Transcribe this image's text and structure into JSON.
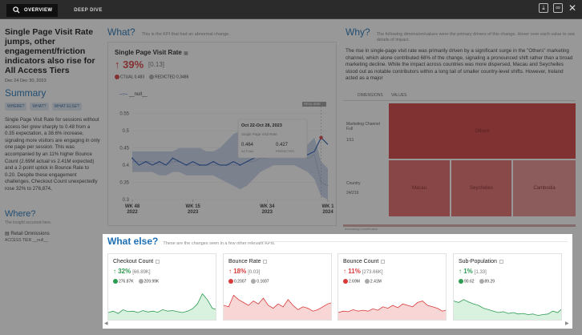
{
  "tabs": [
    {
      "label": "OVERVIEW"
    },
    {
      "label": "DEEP DIVE"
    }
  ],
  "left": {
    "headline": "Single Page Visit Rate jumps, other engagement/friction indicators also rise for All Access Tiers",
    "date": "Dec 24 Dec 30, 2023",
    "summary_title": "Summary",
    "pills": [
      "WHERE?",
      "WHAT?",
      "WHAT ELSE?"
    ],
    "summary_text": "Single Page Visit Rate for sessions without access tier grew sharply to 0.48 from a 0.35 expectation, a 38.6% increase, signaling more visitors are engaging in only one page per session. This was accompanied by an 11% higher Bounce Count (2.69M actual vs 2.41M expected) and a 2-point uptick in Bounce Rate to 0.20. Despite these engagement challenges, Checkout Count unexpectedly rose 32% to 276,874,",
    "where_title": "Where?",
    "where_sub": "The Insight occurred here.",
    "where_item": "Retail Omnissions",
    "where_tier": "ACCESS TIER __null__"
  },
  "what": {
    "title": "What?",
    "subtitle": "This is the KPI that had an abnormal change.",
    "kpi_name": "Single Page Visit Rate",
    "delta": "39%",
    "delta_abs": "[0.13]",
    "actual": "CTUAL 0.483",
    "predicted": "REDICTED 0.3486",
    "legend": "__null__",
    "tooltip_date": "Oct 22-Oct 28, 2023",
    "tooltip_kpi": "Single Page Visit Rate",
    "tooltip_actual": "0.464",
    "tooltip_actual_label": "ACTUAL",
    "tooltip_pred": "0.427",
    "tooltip_pred_label": "PREDICTED",
    "story_date": "Story date"
  },
  "chart_data": {
    "type": "line",
    "title": "Single Page Visit Rate",
    "x": [
      "WK 48 2022",
      "",
      "",
      "",
      "",
      "",
      "",
      "",
      "",
      "WK 15 2023",
      "",
      "",
      "",
      "",
      "",
      "",
      "",
      "",
      "",
      "",
      "WK 34 2023",
      "",
      "",
      "",
      "",
      "",
      "",
      "",
      "",
      "WK 1 2024"
    ],
    "series": [
      {
        "name": "actual",
        "values": [
          0.42,
          0.4,
          0.41,
          0.4,
          0.41,
          0.4,
          0.42,
          0.41,
          0.4,
          0.41,
          0.4,
          0.4,
          0.41,
          0.4,
          0.4,
          0.41,
          0.4,
          0.41,
          0.42,
          0.43,
          0.44,
          0.43,
          0.46,
          0.44,
          0.45,
          0.44,
          0.43,
          0.44,
          0.48,
          0.46
        ]
      },
      {
        "name": "predicted",
        "values": [
          0.41,
          0.41,
          0.41,
          0.41,
          0.4,
          0.4,
          0.41,
          0.41,
          0.4,
          0.4,
          0.4,
          0.4,
          0.4,
          0.4,
          0.4,
          0.4,
          0.4,
          0.41,
          0.41,
          0.42,
          0.42,
          0.43,
          0.43,
          0.43,
          0.43,
          0.43,
          0.42,
          0.43,
          0.35,
          0.34
        ]
      }
    ],
    "band_low": [
      0.38,
      0.38,
      0.38,
      0.38,
      0.37,
      0.37,
      0.38,
      0.38,
      0.37,
      0.37,
      0.37,
      0.37,
      0.37,
      0.36,
      0.35,
      0.34,
      0.33,
      0.34,
      0.36,
      0.38,
      0.39,
      0.4,
      0.4,
      0.4,
      0.4,
      0.39,
      0.38,
      0.36,
      0.31,
      0.3
    ],
    "band_high": [
      0.44,
      0.44,
      0.44,
      0.44,
      0.44,
      0.44,
      0.44,
      0.45,
      0.45,
      0.45,
      0.45,
      0.44,
      0.44,
      0.45,
      0.47,
      0.49,
      0.5,
      0.5,
      0.48,
      0.46,
      0.46,
      0.46,
      0.46,
      0.46,
      0.46,
      0.46,
      0.46,
      0.48,
      0.41,
      0.39
    ],
    "yticks": [
      "0.3",
      "0.35",
      "0.4",
      "0.45",
      "0.5",
      "0.55"
    ],
    "ylim": [
      0.3,
      0.57
    ],
    "xtick_labels": [
      [
        "WK 48",
        "2022"
      ],
      [
        "WK 15",
        "2023"
      ],
      [
        "WK 34",
        "2023"
      ],
      [
        "WK 1",
        "2024"
      ]
    ],
    "grid": true
  },
  "why": {
    "title": "Why?",
    "subtitle": "The following dimension/values were the primary drivers of this change. Hover over each value to see details of impact.",
    "text": "The rise in single-page visit rate was primarily driven by a significant surge in the \"Others\" marketing channel, which alone contributed 68% of the change, signaling a pronounced shift rather than a broad marketing decline. While the impact across countries was more dispersed, Macau and Seychelles stood out as notable contributors within a long tail of smaller country-level shifts. However, Ireland acted as a major",
    "tab_dimensions": "DIMENSIONS",
    "tab_values": "VALUES",
    "row1_label": "Marketing Channel Full",
    "row1_count": "1/11",
    "row2_label": "Country",
    "row2_count": "24/219",
    "blocks": [
      "Others",
      "Macau",
      "Seychelles",
      "Cambodia"
    ],
    "footer": "Increasing Contribution"
  },
  "what_else": {
    "title": "What else?",
    "subtitle": "These are the changes seen in a few other relevant KPIs.",
    "cards": [
      {
        "name": "Checkout Count",
        "dir": "up",
        "pct": "32%",
        "abs": "[66.89K]",
        "actual": "276.87K",
        "pred": "209.99K",
        "color": "#2e9b52",
        "fill": "#d8f2df",
        "spark": [
          0.25,
          0.3,
          0.22,
          0.35,
          0.28,
          0.3,
          0.25,
          0.32,
          0.27,
          0.3,
          0.26,
          0.35,
          0.3,
          0.32,
          0.28,
          0.25,
          0.3,
          0.38,
          0.55,
          0.9,
          0.7,
          0.4,
          0.35
        ]
      },
      {
        "name": "Bounce Rate",
        "dir": "down",
        "pct": "18%",
        "abs": "[0.03]",
        "actual": "0.2007",
        "pred": "0.1697",
        "color": "#d93a3a",
        "fill": "#f8d6d6",
        "spark": [
          0.5,
          0.45,
          0.85,
          0.7,
          0.6,
          0.5,
          0.65,
          0.55,
          0.75,
          0.5,
          0.4,
          0.55,
          0.45,
          0.7,
          0.5,
          0.35,
          0.45,
          0.4,
          0.3,
          0.35,
          0.45,
          0.55,
          0.6
        ]
      },
      {
        "name": "Bounce Count",
        "dir": "down",
        "pct": "11%",
        "abs": "[273.66K]",
        "actual": "2.69M",
        "pred": "2.41M",
        "color": "#d93a3a",
        "fill": "#f8d6d6",
        "spark": [
          0.25,
          0.3,
          0.28,
          0.35,
          0.3,
          0.33,
          0.3,
          0.38,
          0.33,
          0.45,
          0.4,
          0.5,
          0.42,
          0.55,
          0.5,
          0.45,
          0.6,
          0.65,
          0.5,
          0.45,
          0.4,
          0.3,
          0.35
        ]
      },
      {
        "name": "Sub-Population",
        "dir": "up",
        "pct": "1%",
        "abs": "[1.33]",
        "actual": "90.62",
        "pred": "89.29",
        "color": "#2e9b52",
        "fill": "#d8f2df",
        "spark": [
          0.65,
          0.6,
          0.7,
          0.62,
          0.55,
          0.5,
          0.4,
          0.35,
          0.3,
          0.25,
          0.28,
          0.22,
          0.25,
          0.2,
          0.22,
          0.18,
          0.2,
          0.15,
          0.18,
          0.2,
          0.3,
          0.25,
          0.4
        ]
      }
    ]
  },
  "colors": {
    "accent": "#1c6fb4",
    "up": "#2e9b52",
    "down": "#d93a3a"
  }
}
